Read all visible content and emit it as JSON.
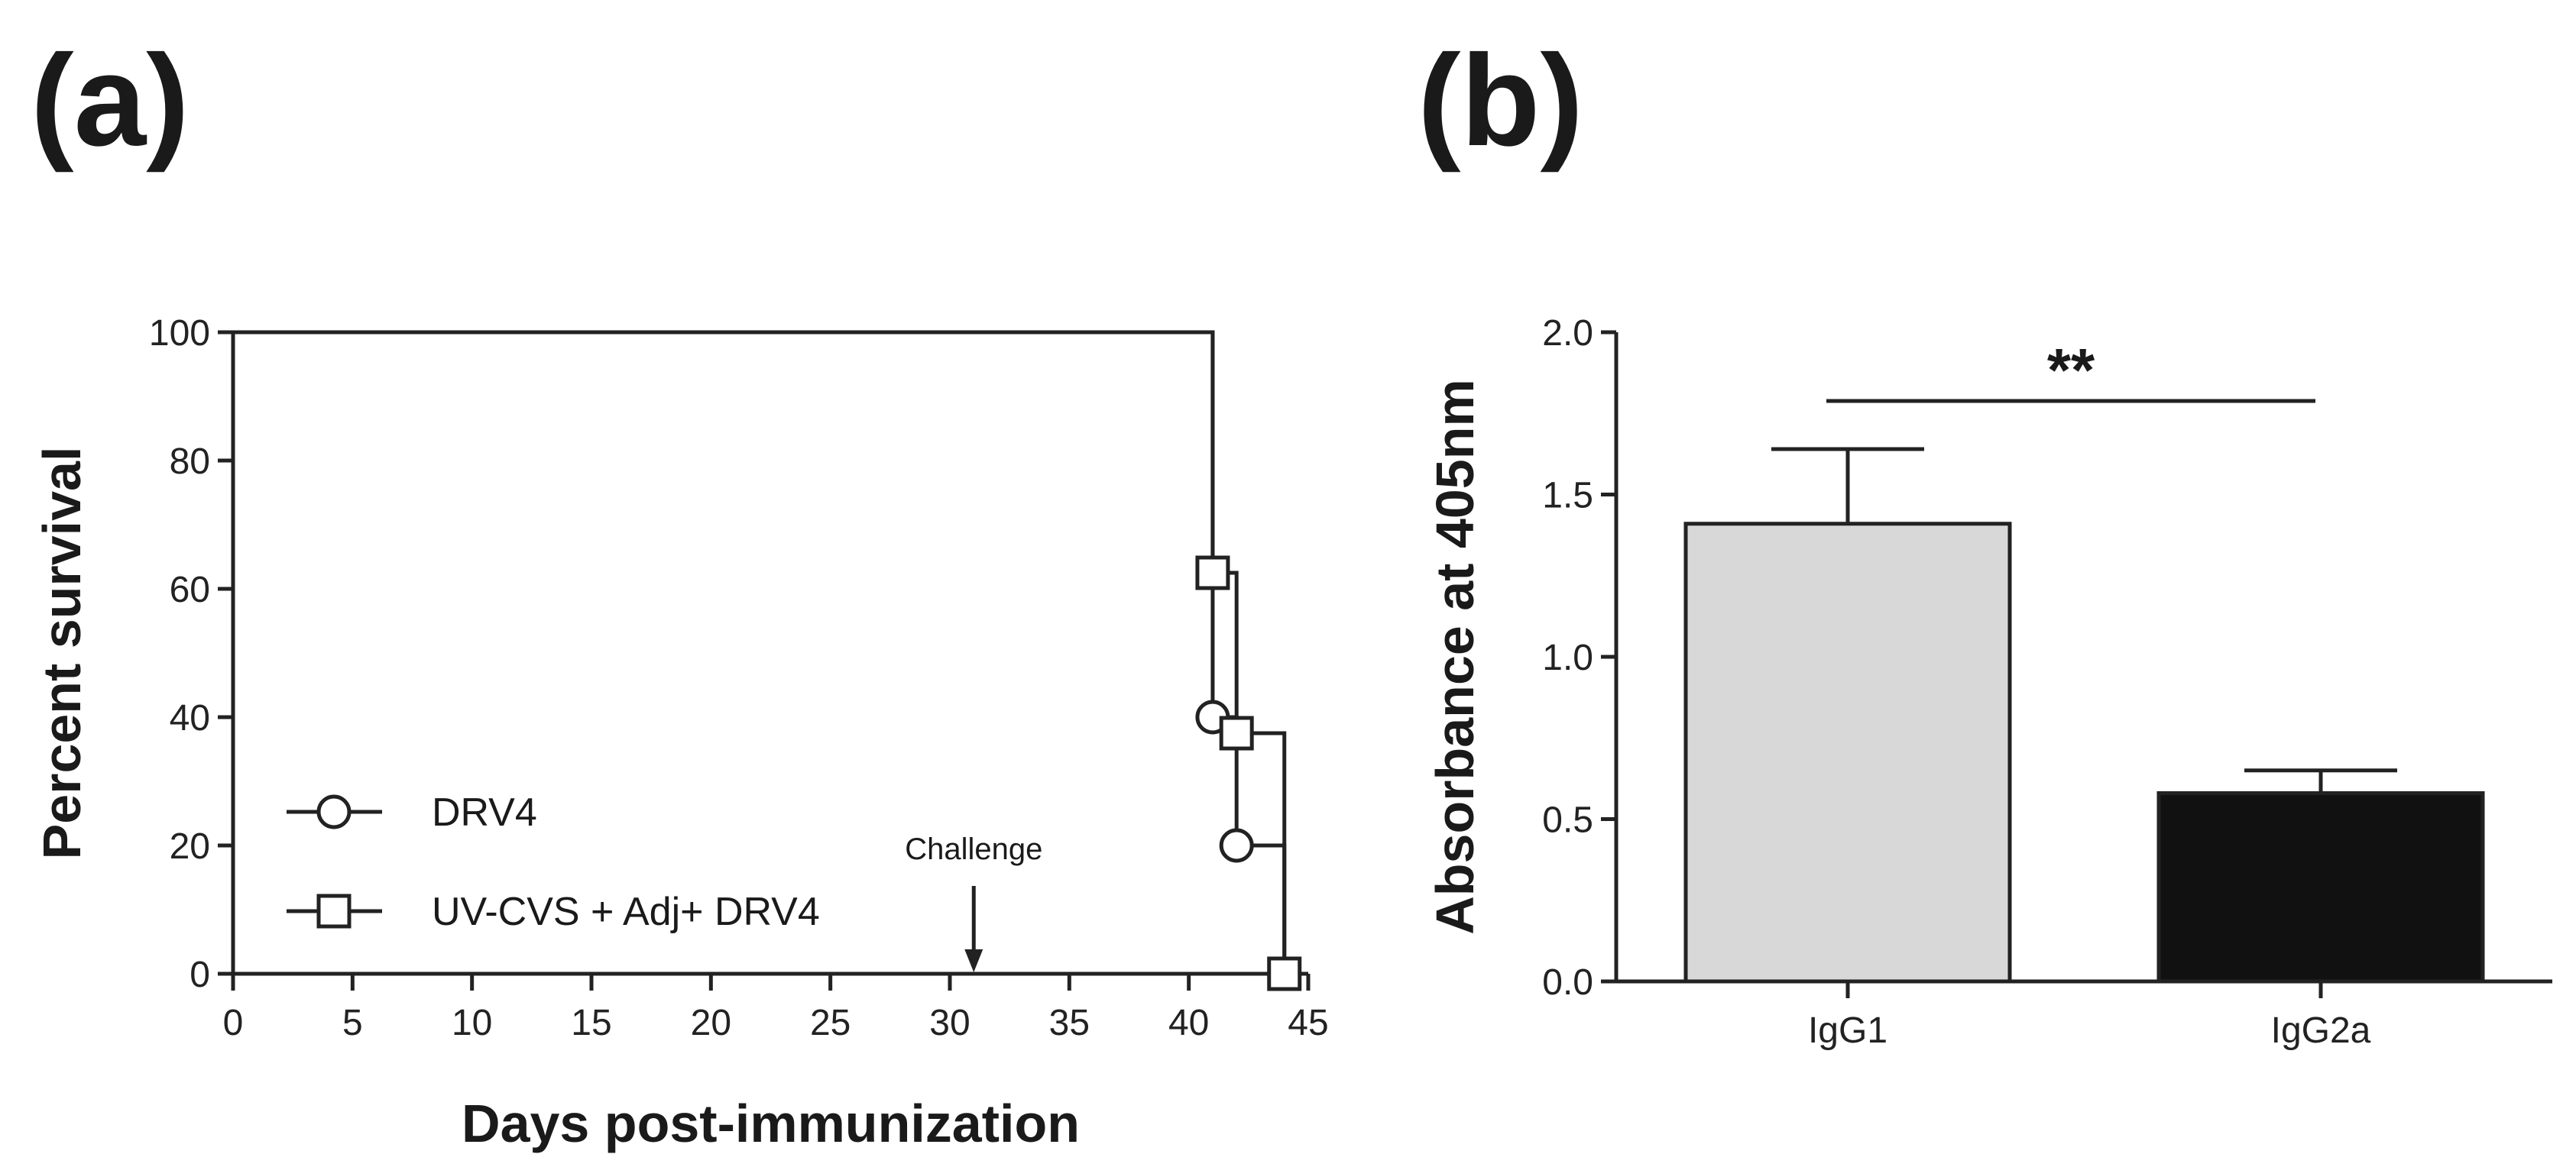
{
  "panel_labels": {
    "a": "(a)",
    "b": "(b)"
  },
  "chart_data": [
    {
      "type": "line",
      "subtype": "kaplan-meier",
      "title": "",
      "xlabel": "Days post-immunization",
      "ylabel": "Percent survival",
      "xlim": [
        0,
        45
      ],
      "ylim": [
        0,
        100
      ],
      "xticks": [
        0,
        5,
        10,
        15,
        20,
        25,
        30,
        35,
        40,
        45
      ],
      "yticks": [
        0,
        20,
        40,
        60,
        80,
        100
      ],
      "grid": false,
      "legend_position": "bottom-left",
      "series": [
        {
          "name": "DRV4",
          "marker": "circle",
          "steps": [
            [
              0,
              100
            ],
            [
              41,
              40
            ],
            [
              42,
              20
            ],
            [
              44,
              0
            ]
          ],
          "marker_points": [
            [
              41,
              40
            ],
            [
              42,
              20
            ],
            [
              44,
              0
            ]
          ]
        },
        {
          "name": "UV-CVS + Adj+ DRV4",
          "marker": "square",
          "steps": [
            [
              0,
              100
            ],
            [
              41,
              62.5
            ],
            [
              42,
              37.5
            ],
            [
              44,
              0
            ]
          ],
          "marker_points": [
            [
              41,
              62.5
            ],
            [
              42,
              37.5
            ],
            [
              44,
              0
            ]
          ]
        }
      ],
      "annotations": [
        {
          "text": "Challenge",
          "x": 31,
          "arrow_to_y": 0
        }
      ]
    },
    {
      "type": "bar",
      "title": "",
      "xlabel": "",
      "ylabel": "Absorbance at 405nm",
      "categories": [
        "IgG1",
        "IgG2a"
      ],
      "values": [
        1.41,
        0.58
      ],
      "errors": [
        0.23,
        0.07
      ],
      "colors": [
        "#d8d8d8",
        "#111111"
      ],
      "ylim": [
        0,
        2.0
      ],
      "yticks": [
        0.0,
        0.5,
        1.0,
        1.5,
        2.0
      ],
      "ytick_labels": [
        "0.0",
        "0.5",
        "1.0",
        "1.5",
        "2.0"
      ],
      "grid": false,
      "significance": {
        "label": "**",
        "between": [
          "IgG1",
          "IgG2a"
        ]
      }
    }
  ]
}
